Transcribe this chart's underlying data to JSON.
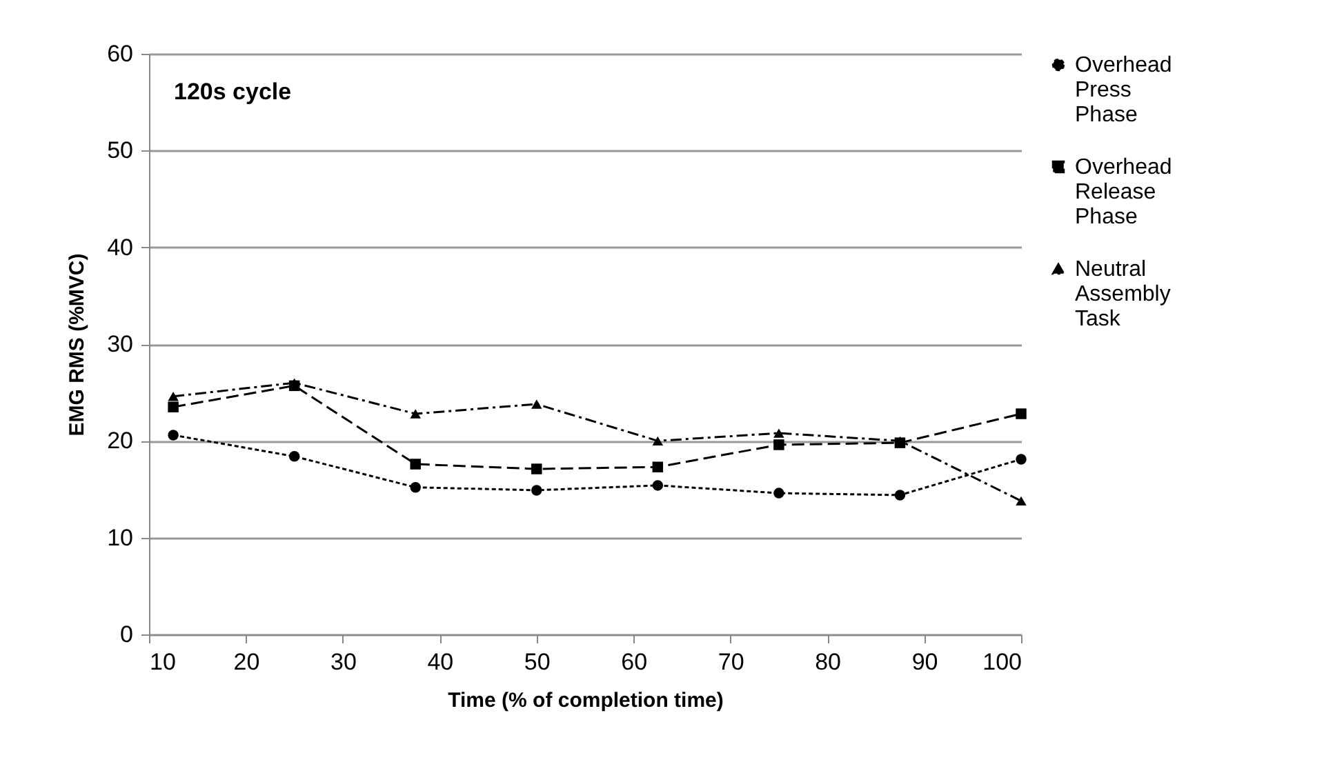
{
  "chart_data": {
    "type": "line",
    "xlabel": "Time (% of completion time)",
    "ylabel": "EMG RMS (%MVC)",
    "annotations": [
      "120s cycle"
    ],
    "x": [
      12.5,
      25,
      37.5,
      50,
      62.5,
      75,
      87.5,
      100
    ],
    "series": [
      {
        "name": "Overhead Press Phase",
        "color": "#000000",
        "marker": "circle",
        "line_style": "dotted",
        "values": [
          20.6,
          18.4,
          15.2,
          14.9,
          15.4,
          14.6,
          14.4,
          18.1
        ]
      },
      {
        "name": "Overhead Release Phase",
        "color": "#000000",
        "marker": "square",
        "line_style": "dashed",
        "values": [
          23.5,
          25.7,
          17.6,
          17.1,
          17.3,
          19.6,
          19.8,
          22.8
        ]
      },
      {
        "name": "Neutral Assembly Task",
        "color": "#000000",
        "marker": "triangle",
        "line_style": "dashdot",
        "values": [
          24.6,
          26.0,
          22.8,
          23.8,
          20.0,
          20.8,
          20.0,
          13.8
        ]
      }
    ],
    "xlim": [
      10,
      100
    ],
    "xticks": [
      10,
      20,
      30,
      40,
      50,
      60,
      70,
      80,
      90,
      100
    ],
    "ylim": [
      0,
      60
    ],
    "yticks": [
      0,
      10,
      20,
      30,
      40,
      50,
      60
    ],
    "grid": "y",
    "legend": "right"
  }
}
